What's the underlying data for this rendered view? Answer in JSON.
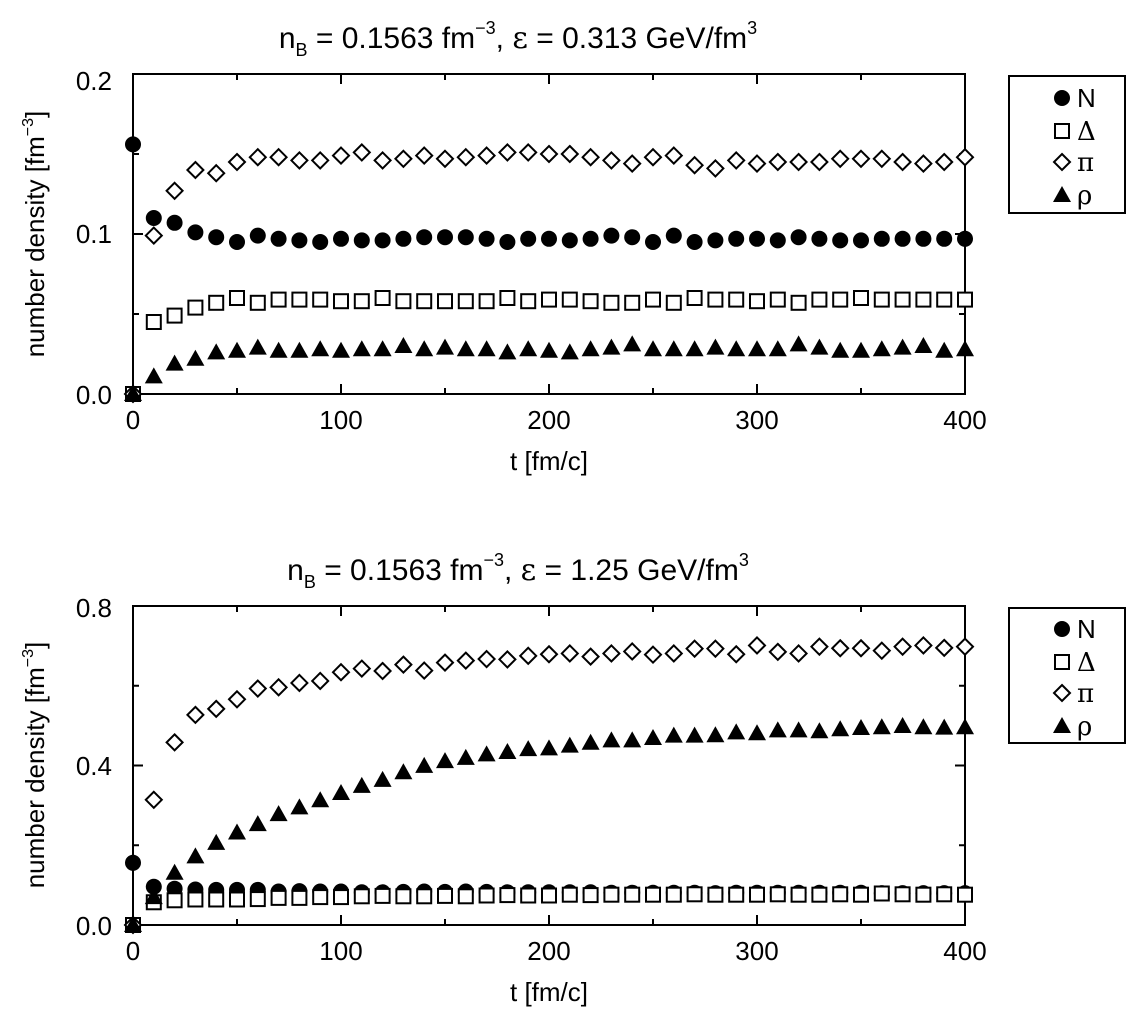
{
  "colors": {
    "ink": "#000000",
    "background": "#ffffff"
  },
  "chart_data": [
    {
      "type": "scatter",
      "title": {
        "prefix": "n",
        "sub": "B",
        "mid": " = 0.1563 fm",
        "sup1": "−3",
        "sep": ", ",
        "greek": "ε",
        "mid2": " = 0.313 GeV/fm",
        "sup2": "3"
      },
      "xlabel": "t [fm/c]",
      "ylabel": {
        "base": "number density [fm",
        "sup": "−3",
        "close": "]"
      },
      "xlim": [
        0,
        400
      ],
      "ylim": [
        0,
        0.2
      ],
      "xticks": [
        "0",
        "100",
        "200",
        "300",
        "400"
      ],
      "yticks": [
        "0.0",
        "0.1",
        "0.2"
      ],
      "grid": false,
      "legend_position": "outside-right",
      "x": [
        0,
        10,
        20,
        30,
        40,
        50,
        60,
        70,
        80,
        90,
        100,
        110,
        120,
        130,
        140,
        150,
        160,
        170,
        180,
        190,
        200,
        210,
        220,
        230,
        240,
        250,
        260,
        270,
        280,
        290,
        300,
        310,
        320,
        330,
        340,
        350,
        360,
        370,
        380,
        390,
        400
      ],
      "series": [
        {
          "name": "N",
          "marker": "circle",
          "values": [
            0.156,
            0.11,
            0.107,
            0.101,
            0.098,
            0.095,
            0.099,
            0.097,
            0.096,
            0.095,
            0.097,
            0.096,
            0.096,
            0.097,
            0.098,
            0.098,
            0.098,
            0.097,
            0.095,
            0.097,
            0.097,
            0.096,
            0.097,
            0.099,
            0.098,
            0.095,
            0.099,
            0.095,
            0.096,
            0.097,
            0.097,
            0.096,
            0.098,
            0.097,
            0.096,
            0.096,
            0.097,
            0.097,
            0.097,
            0.097,
            0.097
          ]
        },
        {
          "name": "Δ",
          "marker": "square",
          "values": [
            0.0,
            0.045,
            0.049,
            0.054,
            0.057,
            0.06,
            0.057,
            0.059,
            0.059,
            0.059,
            0.058,
            0.058,
            0.06,
            0.058,
            0.058,
            0.058,
            0.058,
            0.058,
            0.06,
            0.058,
            0.059,
            0.059,
            0.058,
            0.057,
            0.057,
            0.059,
            0.057,
            0.06,
            0.059,
            0.059,
            0.058,
            0.059,
            0.057,
            0.059,
            0.059,
            0.06,
            0.059,
            0.059,
            0.059,
            0.059,
            0.059
          ]
        },
        {
          "name": "π",
          "marker": "diamond",
          "values": [
            0.0,
            0.099,
            0.127,
            0.14,
            0.138,
            0.145,
            0.148,
            0.148,
            0.146,
            0.146,
            0.149,
            0.151,
            0.146,
            0.147,
            0.149,
            0.147,
            0.148,
            0.149,
            0.151,
            0.151,
            0.15,
            0.15,
            0.148,
            0.146,
            0.144,
            0.148,
            0.149,
            0.143,
            0.141,
            0.146,
            0.144,
            0.145,
            0.145,
            0.145,
            0.147,
            0.147,
            0.147,
            0.145,
            0.144,
            0.145,
            0.148
          ]
        },
        {
          "name": "ρ",
          "marker": "triangle",
          "values": [
            0.0,
            0.011,
            0.019,
            0.022,
            0.026,
            0.027,
            0.029,
            0.027,
            0.027,
            0.028,
            0.027,
            0.028,
            0.028,
            0.03,
            0.028,
            0.029,
            0.028,
            0.028,
            0.026,
            0.028,
            0.027,
            0.026,
            0.028,
            0.029,
            0.031,
            0.028,
            0.028,
            0.028,
            0.029,
            0.028,
            0.028,
            0.028,
            0.031,
            0.029,
            0.027,
            0.027,
            0.028,
            0.029,
            0.03,
            0.027,
            0.028
          ]
        }
      ]
    },
    {
      "type": "scatter",
      "title": {
        "prefix": "n",
        "sub": "B",
        "mid": " = 0.1563 fm",
        "sup1": "−3",
        "sep": ", ",
        "greek": "ε",
        "mid2": " = 1.25 GeV/fm",
        "sup2": "3"
      },
      "xlabel": "t [fm/c]",
      "ylabel": {
        "base": "number density [fm",
        "sup": "−3",
        "close": "]"
      },
      "xlim": [
        0,
        400
      ],
      "ylim": [
        0,
        0.8
      ],
      "xticks": [
        "0",
        "100",
        "200",
        "300",
        "400"
      ],
      "yticks": [
        "0.0",
        "0.4",
        "0.8"
      ],
      "grid": false,
      "legend_position": "outside-right",
      "x": [
        0,
        10,
        20,
        30,
        40,
        50,
        60,
        70,
        80,
        90,
        100,
        110,
        120,
        130,
        140,
        150,
        160,
        170,
        180,
        190,
        200,
        210,
        220,
        230,
        240,
        250,
        260,
        270,
        280,
        290,
        300,
        310,
        320,
        330,
        340,
        350,
        360,
        370,
        380,
        390,
        400
      ],
      "series": [
        {
          "name": "N",
          "marker": "circle",
          "values": [
            0.156,
            0.096,
            0.091,
            0.089,
            0.088,
            0.088,
            0.088,
            0.084,
            0.085,
            0.084,
            0.084,
            0.082,
            0.082,
            0.083,
            0.084,
            0.083,
            0.084,
            0.083,
            0.082,
            0.082,
            0.082,
            0.082,
            0.082,
            0.081,
            0.081,
            0.081,
            0.081,
            0.081,
            0.08,
            0.081,
            0.081,
            0.081,
            0.081,
            0.081,
            0.081,
            0.081,
            0.08,
            0.08,
            0.08,
            0.08,
            0.08
          ]
        },
        {
          "name": "Δ",
          "marker": "square",
          "values": [
            0.0,
            0.057,
            0.062,
            0.064,
            0.064,
            0.064,
            0.065,
            0.068,
            0.068,
            0.07,
            0.07,
            0.072,
            0.073,
            0.072,
            0.072,
            0.073,
            0.072,
            0.074,
            0.075,
            0.074,
            0.074,
            0.076,
            0.075,
            0.076,
            0.076,
            0.076,
            0.076,
            0.077,
            0.076,
            0.076,
            0.076,
            0.077,
            0.076,
            0.076,
            0.077,
            0.076,
            0.079,
            0.077,
            0.076,
            0.077,
            0.076
          ]
        },
        {
          "name": "π",
          "marker": "diamond",
          "values": [
            0.0,
            0.314,
            0.458,
            0.527,
            0.542,
            0.566,
            0.593,
            0.596,
            0.607,
            0.612,
            0.634,
            0.643,
            0.637,
            0.653,
            0.638,
            0.658,
            0.663,
            0.667,
            0.666,
            0.675,
            0.679,
            0.681,
            0.673,
            0.681,
            0.686,
            0.678,
            0.681,
            0.693,
            0.693,
            0.679,
            0.701,
            0.685,
            0.681,
            0.698,
            0.694,
            0.694,
            0.688,
            0.698,
            0.701,
            0.695,
            0.698
          ]
        },
        {
          "name": "ρ",
          "marker": "triangle",
          "values": [
            0.0,
            0.07,
            0.131,
            0.172,
            0.206,
            0.232,
            0.253,
            0.278,
            0.295,
            0.313,
            0.331,
            0.349,
            0.364,
            0.383,
            0.399,
            0.411,
            0.419,
            0.428,
            0.434,
            0.441,
            0.443,
            0.45,
            0.457,
            0.463,
            0.463,
            0.469,
            0.475,
            0.475,
            0.476,
            0.483,
            0.481,
            0.488,
            0.488,
            0.486,
            0.491,
            0.494,
            0.496,
            0.499,
            0.496,
            0.495,
            0.496
          ]
        }
      ]
    }
  ]
}
